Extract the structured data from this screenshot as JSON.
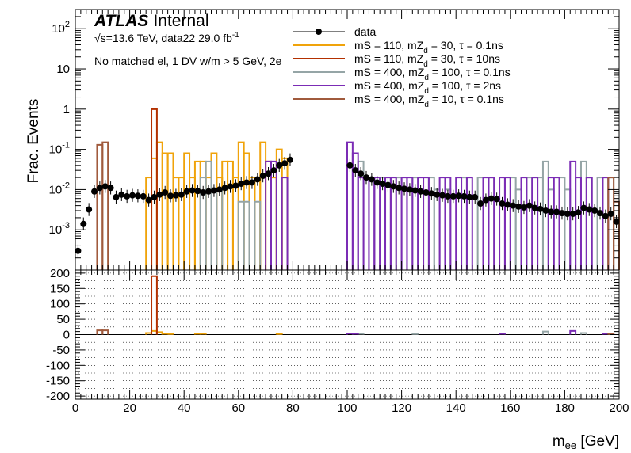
{
  "chart_data": {
    "type": "histogram",
    "label": {
      "experiment": "ATLAS",
      "status": "Internal"
    },
    "info": {
      "sqrt_s": "√s=13.6 TeV, data22 29.0 fb",
      "lumi_exponent": "-1",
      "selection": "No matched el, 1 DV w/m > 5 GeV, 2e"
    },
    "xlabel": "m",
    "xlabel_sub": "ee",
    "xlabel_unit": " [GeV]",
    "ylabel": "Frac. Events",
    "xlim": [
      0,
      200
    ],
    "ylim": [
      0.0001,
      300
    ],
    "yscale": "log",
    "ratio_ylim": [
      -210,
      210
    ],
    "x_ticks": [
      0,
      20,
      40,
      60,
      80,
      100,
      120,
      140,
      160,
      180,
      200
    ],
    "y_ticks": [
      {
        "v": 0.001,
        "base": "10",
        "exp": "-3"
      },
      {
        "v": 0.01,
        "base": "10",
        "exp": "-2"
      },
      {
        "v": 0.1,
        "base": "10",
        "exp": "-1"
      },
      {
        "v": 1,
        "base": "1",
        "exp": ""
      },
      {
        "v": 10,
        "base": "10",
        "exp": ""
      },
      {
        "v": 100,
        "base": "10",
        "exp": "2"
      }
    ],
    "ratio_ticks": [
      -200,
      -150,
      -100,
      -50,
      0,
      50,
      100,
      150,
      200
    ],
    "ratio_grid": [
      -200,
      -175,
      -150,
      -125,
      -100,
      -75,
      -50,
      -25,
      25,
      50,
      75,
      100,
      125,
      150,
      175,
      200
    ],
    "legend": [
      {
        "text": "data",
        "style": "marker",
        "color": "#000000"
      },
      {
        "text": "mS = 110, mZ_d = 30, τ = 0.1ns",
        "color": "#f0a30a"
      },
      {
        "text": "mS = 110, mZ_d = 30, τ = 10ns",
        "color": "#b33000"
      },
      {
        "text": "mS = 400, mZ_d = 100, τ = 0.1ns",
        "color": "#95a5a6"
      },
      {
        "text": "mS = 400, mZ_d = 100, τ = 2ns",
        "color": "#7b2cb5"
      },
      {
        "text": "mS = 400, mZ_d = 10, τ = 0.1ns",
        "color": "#a05a3c"
      }
    ],
    "data_points": {
      "x": [
        1,
        3,
        5,
        7,
        9,
        11,
        13,
        15,
        17,
        19,
        21,
        23,
        25,
        27,
        29,
        31,
        33,
        35,
        37,
        39,
        41,
        43,
        45,
        47,
        49,
        51,
        53,
        55,
        57,
        59,
        61,
        63,
        65,
        67,
        69,
        71,
        73,
        75,
        77,
        79,
        101,
        103,
        105,
        107,
        109,
        111,
        113,
        115,
        117,
        119,
        121,
        123,
        125,
        127,
        129,
        131,
        133,
        135,
        137,
        139,
        141,
        143,
        145,
        147,
        149,
        151,
        153,
        155,
        157,
        159,
        161,
        163,
        165,
        167,
        169,
        171,
        173,
        175,
        177,
        179,
        181,
        183,
        185,
        187,
        189,
        191,
        193,
        195,
        197,
        199
      ],
      "y": [
        0.0003,
        0.0014,
        0.0032,
        0.009,
        0.011,
        0.012,
        0.011,
        0.0065,
        0.0075,
        0.0068,
        0.0072,
        0.007,
        0.0068,
        0.0055,
        0.0065,
        0.0075,
        0.0085,
        0.007,
        0.0072,
        0.0075,
        0.009,
        0.0095,
        0.0092,
        0.0085,
        0.009,
        0.0095,
        0.01,
        0.011,
        0.012,
        0.0125,
        0.014,
        0.015,
        0.015,
        0.018,
        0.022,
        0.025,
        0.03,
        0.04,
        0.045,
        0.055,
        0.04,
        0.03,
        0.025,
        0.02,
        0.018,
        0.015,
        0.014,
        0.013,
        0.012,
        0.011,
        0.0105,
        0.01,
        0.0095,
        0.009,
        0.0085,
        0.008,
        0.0075,
        0.0072,
        0.0068,
        0.0068,
        0.007,
        0.0068,
        0.0065,
        0.0065,
        0.0045,
        0.0055,
        0.006,
        0.0058,
        0.0045,
        0.0042,
        0.004,
        0.0038,
        0.0036,
        0.004,
        0.0035,
        0.0033,
        0.003,
        0.0028,
        0.0028,
        0.0026,
        0.0025,
        0.0025,
        0.0027,
        0.0035,
        0.0032,
        0.003,
        0.0026,
        0.0022,
        0.0025,
        0.0016
      ]
    },
    "series": [
      {
        "name": "mS = 110, mZ_d = 30, τ = 0.1ns",
        "color": "#f0a30a",
        "bins": [
          [
            26,
            28,
            0.02
          ],
          [
            28,
            30,
            0.06
          ],
          [
            30,
            32,
            0.15
          ],
          [
            32,
            34,
            0.08
          ],
          [
            34,
            36,
            0.08
          ],
          [
            36,
            38,
            0.02
          ],
          [
            38,
            40,
            0.02
          ],
          [
            40,
            42,
            0.08
          ],
          [
            42,
            44,
            0.02
          ],
          [
            44,
            46,
            0.05
          ],
          [
            46,
            48,
            0.05
          ],
          [
            48,
            50,
            0.02
          ],
          [
            50,
            52,
            0.08
          ],
          [
            52,
            54,
            0.02
          ],
          [
            54,
            56,
            0.05
          ],
          [
            56,
            58,
            0.05
          ],
          [
            58,
            60,
            0.02
          ],
          [
            60,
            62,
            0.15
          ],
          [
            62,
            64,
            0.08
          ],
          [
            64,
            66,
            0.02
          ],
          [
            66,
            68,
            0.02
          ],
          [
            68,
            70,
            0.15
          ],
          [
            70,
            72,
            0.05
          ],
          [
            72,
            74,
            0.02
          ],
          [
            74,
            76,
            0.1
          ],
          [
            76,
            78,
            0.06
          ]
        ],
        "ratio": [
          [
            26,
            28,
            5
          ],
          [
            28,
            30,
            12
          ],
          [
            30,
            32,
            8
          ],
          [
            32,
            34,
            3
          ],
          [
            34,
            36,
            2
          ],
          [
            44,
            46,
            3
          ],
          [
            46,
            48,
            3
          ],
          [
            74,
            76,
            2
          ]
        ]
      },
      {
        "name": "mS = 110, mZ_d = 30, τ = 10ns",
        "color": "#b33000",
        "bins": [
          [
            28,
            30,
            1.0
          ]
        ],
        "ratio": [
          [
            28,
            30,
            190
          ]
        ]
      },
      {
        "name": "mS = 400, mZ_d = 100, τ = 0.1ns",
        "color": "#95a5a6",
        "bins": [
          [
            46,
            48,
            0.02
          ],
          [
            48,
            50,
            0.05
          ],
          [
            52,
            54,
            0.01
          ],
          [
            60,
            62,
            0.005
          ],
          [
            62,
            64,
            0.005
          ],
          [
            66,
            68,
            0.005
          ],
          [
            104,
            106,
            0.05
          ],
          [
            108,
            110,
            0.02
          ],
          [
            112,
            114,
            0.02
          ],
          [
            118,
            120,
            0.02
          ],
          [
            124,
            126,
            0.02
          ],
          [
            126,
            128,
            0.01
          ],
          [
            130,
            132,
            0.02
          ],
          [
            132,
            134,
            0.01
          ],
          [
            136,
            138,
            0.01
          ],
          [
            142,
            144,
            0.02
          ],
          [
            148,
            150,
            0.02
          ],
          [
            152,
            154,
            0.02
          ],
          [
            160,
            162,
            0.02
          ],
          [
            162,
            164,
            0.01
          ],
          [
            166,
            168,
            0.02
          ],
          [
            170,
            172,
            0.02
          ],
          [
            172,
            174,
            0.05
          ],
          [
            174,
            176,
            0.01
          ],
          [
            178,
            180,
            0.02
          ],
          [
            180,
            182,
            0.01
          ],
          [
            186,
            188,
            0.05
          ],
          [
            188,
            190,
            0.02
          ],
          [
            192,
            194,
            0.02
          ],
          [
            196,
            198,
            0.02
          ]
        ],
        "ratio": [
          [
            104,
            106,
            3
          ],
          [
            124,
            126,
            2
          ],
          [
            172,
            174,
            10
          ],
          [
            186,
            188,
            5
          ],
          [
            196,
            198,
            3
          ]
        ]
      },
      {
        "name": "mS = 400, mZ_d = 100, τ = 2ns",
        "color": "#7b2cb5",
        "bins": [
          [
            70,
            72,
            0.05
          ],
          [
            72,
            74,
            0.05
          ],
          [
            76,
            78,
            0.02
          ],
          [
            100,
            102,
            0.15
          ],
          [
            102,
            104,
            0.08
          ],
          [
            104,
            106,
            0.02
          ],
          [
            108,
            110,
            0.02
          ],
          [
            110,
            112,
            0.02
          ],
          [
            114,
            116,
            0.02
          ],
          [
            116,
            118,
            0.02
          ],
          [
            120,
            122,
            0.02
          ],
          [
            122,
            124,
            0.02
          ],
          [
            126,
            128,
            0.02
          ],
          [
            128,
            130,
            0.02
          ],
          [
            134,
            136,
            0.02
          ],
          [
            136,
            138,
            0.02
          ],
          [
            140,
            142,
            0.02
          ],
          [
            144,
            146,
            0.02
          ],
          [
            150,
            152,
            0.02
          ],
          [
            152,
            154,
            0.02
          ],
          [
            156,
            158,
            0.02
          ],
          [
            158,
            160,
            0.02
          ],
          [
            164,
            166,
            0.02
          ],
          [
            168,
            170,
            0.02
          ],
          [
            174,
            176,
            0.02
          ],
          [
            176,
            178,
            0.02
          ],
          [
            182,
            184,
            0.05
          ],
          [
            184,
            186,
            0.02
          ],
          [
            188,
            190,
            0.02
          ],
          [
            194,
            196,
            0.02
          ]
        ],
        "ratio": [
          [
            100,
            102,
            4
          ],
          [
            102,
            104,
            3
          ],
          [
            156,
            158,
            3
          ],
          [
            182,
            184,
            12
          ],
          [
            194,
            196,
            3
          ]
        ]
      },
      {
        "name": "mS = 400, mZ_d = 10, τ = 0.1ns",
        "color": "#a05a3c",
        "bins": [
          [
            8,
            10,
            0.13
          ],
          [
            10,
            12,
            0.15
          ],
          [
            196,
            198,
            0.02
          ],
          [
            198,
            200,
            0.005
          ]
        ],
        "ratio": [
          [
            8,
            10,
            14
          ],
          [
            10,
            12,
            14
          ],
          [
            196,
            198,
            2
          ]
        ]
      }
    ]
  }
}
